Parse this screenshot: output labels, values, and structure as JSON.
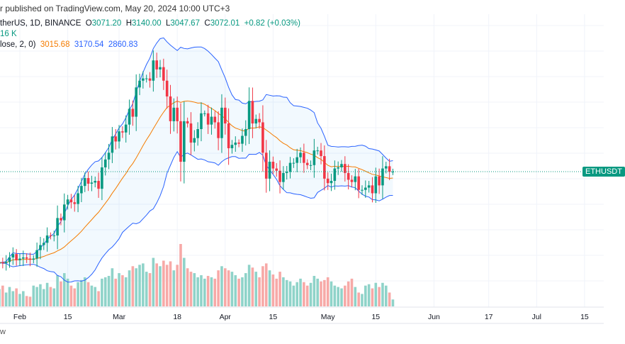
{
  "header": {
    "published": "r published on TradingView.com, May 20, 2024 10:00 UTC+3",
    "symbol": "therUS, 1D, BINANCE",
    "o_label": "O",
    "o": "3071.20",
    "h_label": "H",
    "h": "3140.00",
    "l_label": "L",
    "l": "3047.67",
    "c_label": "C",
    "c": "3072.01",
    "change": "+0.82 (+0.03%)",
    "volume": "16 K",
    "bb_label": "lose, 2, 0)",
    "bb_mid": "3015.68",
    "bb_upper": "3170.54",
    "bb_lower": "2860.83"
  },
  "price_tag": "ETHUSDT",
  "footer": "w",
  "colors": {
    "up": "#089981",
    "down": "#f23645",
    "vol_up": "#8fd3c9",
    "vol_down": "#f7a9a7",
    "bb": "#2962ff",
    "basis": "#f57c00"
  },
  "chart_data": {
    "type": "candlestick",
    "title": "ETHUSDT, 1D, BINANCE",
    "start_date": "2024-01-26",
    "bollinger": {
      "length": 20,
      "mult": 2
    },
    "x_ticks": [
      {
        "label": "Feb",
        "day": 6
      },
      {
        "label": "15",
        "day": 20
      },
      {
        "label": "Mar",
        "day": 35
      },
      {
        "label": "18",
        "day": 52
      },
      {
        "label": "Apr",
        "day": 66
      },
      {
        "label": "15",
        "day": 80
      },
      {
        "label": "May",
        "day": 96
      },
      {
        "label": "15",
        "day": 110
      },
      {
        "label": "Jun",
        "day": 127
      },
      {
        "label": "17",
        "day": 143
      },
      {
        "label": "Jul",
        "day": 157
      },
      {
        "label": "15",
        "day": 171
      }
    ],
    "closes": [
      2265,
      2260,
      2270,
      2310,
      2340,
      2285,
      2300,
      2310,
      2300,
      2290,
      2300,
      2375,
      2420,
      2440,
      2505,
      2500,
      2505,
      2660,
      2640,
      2780,
      2825,
      2800,
      2785,
      2880,
      2945,
      3015,
      2965,
      2975,
      2990,
      2920,
      3110,
      3180,
      3240,
      3385,
      3340,
      3430,
      3420,
      3490,
      3630,
      3560,
      3820,
      3880,
      3900,
      3900,
      3880,
      4060,
      3980,
      4000,
      3880,
      3740,
      3520,
      3640,
      3520,
      3160,
      3520,
      3500,
      3330,
      3370,
      3450,
      3590,
      3590,
      3490,
      3560,
      3510,
      3370,
      3640,
      3500,
      3280,
      3310,
      3330,
      3320,
      3390,
      3450,
      3700,
      3500,
      3540,
      3510,
      3240,
      3010,
      3160,
      3100,
      3080,
      2980,
      3060,
      3070,
      3150,
      3150,
      3200,
      3240,
      3150,
      3130,
      3130,
      3260,
      3260,
      3210,
      3010,
      2970,
      2990,
      3100,
      3110,
      3140,
      3060,
      3000,
      2980,
      3030,
      2910,
      2910,
      2930,
      2950,
      2880,
      3030,
      2950,
      3100,
      3120,
      3070,
      3072
    ],
    "volumes": [
      25,
      30,
      20,
      28,
      22,
      26,
      18,
      22,
      15,
      14,
      30,
      28,
      32,
      25,
      34,
      28,
      26,
      45,
      36,
      48,
      40,
      30,
      26,
      35,
      38,
      42,
      35,
      30,
      28,
      22,
      40,
      42,
      44,
      55,
      40,
      48,
      45,
      42,
      52,
      58,
      55,
      60,
      62,
      50,
      48,
      70,
      62,
      58,
      66,
      60,
      65,
      52,
      60,
      90,
      70,
      55,
      50,
      48,
      42,
      45,
      40,
      44,
      42,
      40,
      52,
      58,
      55,
      52,
      50,
      45,
      40,
      42,
      48,
      60,
      56,
      50,
      42,
      58,
      62,
      52,
      46,
      40,
      50,
      42,
      38,
      36,
      30,
      35,
      40,
      35,
      30,
      34,
      44,
      40,
      36,
      38,
      42,
      36,
      30,
      28,
      26,
      30,
      36,
      40,
      28,
      20,
      18,
      30,
      32,
      26,
      34,
      28,
      34,
      30,
      20,
      10
    ]
  }
}
